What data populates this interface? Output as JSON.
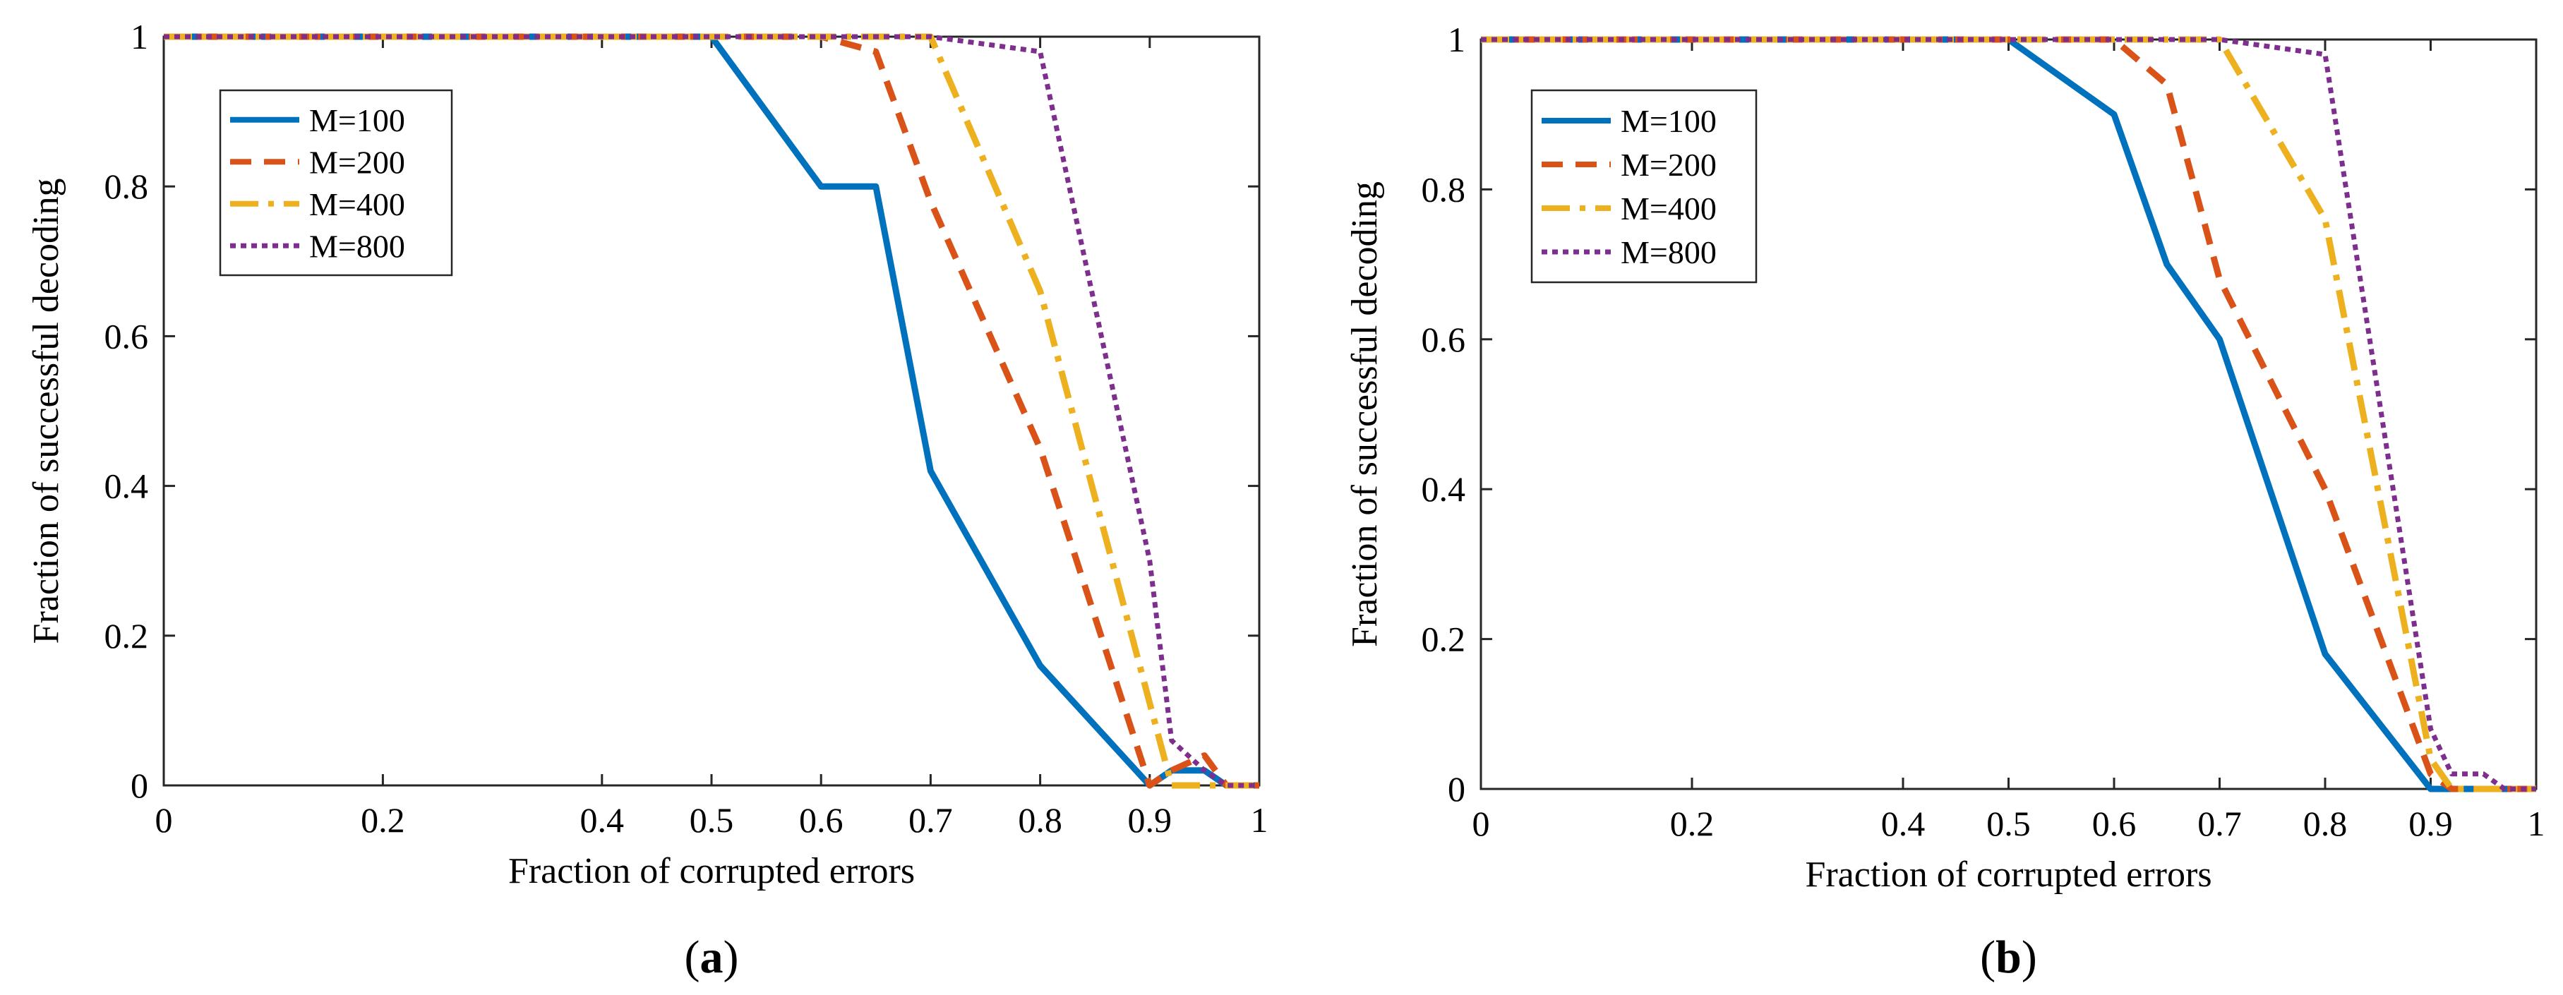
{
  "chart_data": [
    {
      "type": "line",
      "panel_label": "a",
      "title": "",
      "xlabel": "Fraction of corrupted errors",
      "ylabel": "Fraction of successful decoding",
      "xlim": [
        0,
        1
      ],
      "ylim": [
        0,
        1
      ],
      "xticks": [
        "0",
        "0.2",
        "0.4",
        "0.5",
        "0.6",
        "0.7",
        "0.8",
        "0.9",
        "1"
      ],
      "xtick_values": [
        0,
        0.2,
        0.4,
        0.5,
        0.6,
        0.7,
        0.8,
        0.9,
        1
      ],
      "yticks": [
        "0",
        "0.2",
        "0.4",
        "0.6",
        "0.8",
        "1"
      ],
      "ytick_values": [
        0,
        0.2,
        0.4,
        0.6,
        0.8,
        1
      ],
      "grid": false,
      "legend_position": "top-left",
      "series": [
        {
          "name": "M=100",
          "color": "#0072BD",
          "style": "solid",
          "x": [
            0,
            0.5,
            0.6,
            0.65,
            0.7,
            0.8,
            0.9,
            0.92,
            0.95,
            0.97,
            1
          ],
          "y": [
            1,
            1,
            0.8,
            0.8,
            0.42,
            0.16,
            0,
            0.02,
            0.02,
            0,
            0
          ]
        },
        {
          "name": "M=200",
          "color": "#D95319",
          "style": "dashed",
          "x": [
            0,
            0.6,
            0.65,
            0.7,
            0.8,
            0.9,
            0.92,
            0.95,
            0.97,
            1
          ],
          "y": [
            1,
            1,
            0.98,
            0.78,
            0.45,
            0,
            0.02,
            0.04,
            0,
            0
          ]
        },
        {
          "name": "M=400",
          "color": "#EDB120",
          "style": "dashdot",
          "x": [
            0,
            0.7,
            0.8,
            0.92,
            0.95,
            1
          ],
          "y": [
            1,
            1,
            0.66,
            0,
            0,
            0
          ]
        },
        {
          "name": "M=800",
          "color": "#7E2F8E",
          "style": "dotted",
          "x": [
            0,
            0.7,
            0.8,
            0.9,
            0.92,
            0.95,
            0.97,
            1
          ],
          "y": [
            1,
            1,
            0.98,
            0.3,
            0.06,
            0.02,
            0,
            0
          ]
        }
      ]
    },
    {
      "type": "line",
      "panel_label": "b",
      "title": "",
      "xlabel": "Fraction of corrupted errors",
      "ylabel": "Fraction of successful decoding",
      "xlim": [
        0,
        1
      ],
      "ylim": [
        0,
        1
      ],
      "xticks": [
        "0",
        "0.2",
        "0.4",
        "0.5",
        "0.6",
        "0.7",
        "0.8",
        "0.9",
        "1"
      ],
      "xtick_values": [
        0,
        0.2,
        0.4,
        0.5,
        0.6,
        0.7,
        0.8,
        0.9,
        1
      ],
      "yticks": [
        "0",
        "0.2",
        "0.4",
        "0.6",
        "0.8",
        "1"
      ],
      "ytick_values": [
        0,
        0.2,
        0.4,
        0.6,
        0.8,
        1
      ],
      "grid": false,
      "legend_position": "top-left",
      "series": [
        {
          "name": "M=100",
          "color": "#0072BD",
          "style": "solid",
          "x": [
            0,
            0.5,
            0.6,
            0.65,
            0.7,
            0.8,
            0.9,
            1
          ],
          "y": [
            1,
            1,
            0.9,
            0.7,
            0.6,
            0.18,
            0,
            0
          ]
        },
        {
          "name": "M=200",
          "color": "#D95319",
          "style": "dashed",
          "x": [
            0,
            0.6,
            0.65,
            0.7,
            0.8,
            0.9,
            0.92,
            1
          ],
          "y": [
            1,
            1,
            0.94,
            0.68,
            0.4,
            0.02,
            0,
            0
          ]
        },
        {
          "name": "M=400",
          "color": "#EDB120",
          "style": "dashdot",
          "x": [
            0,
            0.7,
            0.8,
            0.9,
            0.92,
            1
          ],
          "y": [
            1,
            1,
            0.76,
            0.04,
            0,
            0
          ]
        },
        {
          "name": "M=800",
          "color": "#7E2F8E",
          "style": "dotted",
          "x": [
            0,
            0.7,
            0.8,
            0.9,
            0.92,
            0.95,
            0.97,
            1
          ],
          "y": [
            1,
            1,
            0.98,
            0.08,
            0.02,
            0.02,
            0,
            0
          ]
        }
      ]
    }
  ]
}
